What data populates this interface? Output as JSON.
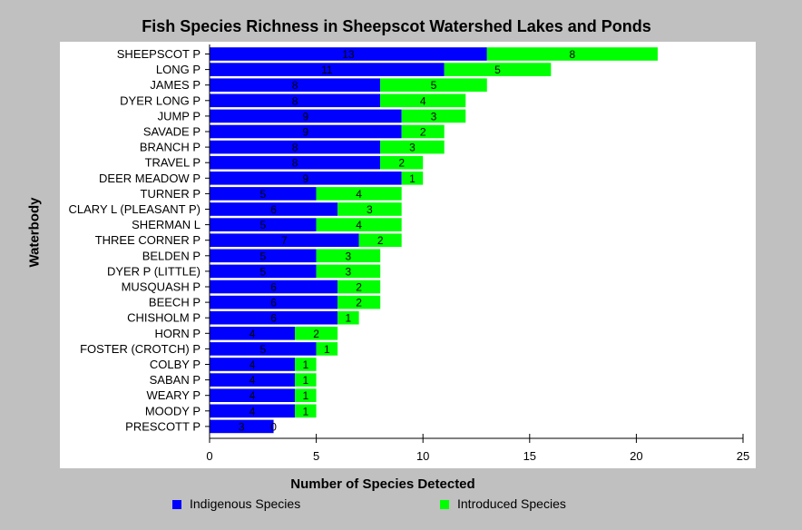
{
  "chart_data": {
    "type": "bar",
    "orientation": "horizontal",
    "stacked": true,
    "title": "Fish Species Richness in Sheepscot Watershed Lakes and Ponds",
    "xlabel": "Number of Species Detected",
    "ylabel": "Waterbody",
    "xlim": [
      0,
      25
    ],
    "x_ticks": [
      0,
      5,
      10,
      15,
      20,
      25
    ],
    "grid": false,
    "legend_position": "bottom",
    "categories": [
      "SHEEPSCOT P",
      "LONG P",
      "JAMES P",
      "DYER LONG P",
      "JUMP P",
      "SAVADE P",
      "BRANCH P",
      "TRAVEL P",
      "DEER MEADOW P",
      "TURNER P",
      "CLARY L (PLEASANT P)",
      "SHERMAN L",
      "THREE CORNER P",
      "BELDEN P",
      "DYER P (LITTLE)",
      "MUSQUASH P",
      "BEECH P",
      "CHISHOLM P",
      "HORN P",
      "FOSTER (CROTCH) P",
      "COLBY P",
      "SABAN P",
      "WEARY P",
      "MOODY P",
      "PRESCOTT P"
    ],
    "series": [
      {
        "name": "Indigenous Species",
        "color": "#0000ff",
        "values": [
          13,
          11,
          8,
          8,
          9,
          9,
          8,
          8,
          9,
          5,
          6,
          5,
          7,
          5,
          5,
          6,
          6,
          6,
          4,
          5,
          4,
          4,
          4,
          4,
          3
        ]
      },
      {
        "name": "Introduced Species",
        "color": "#00ff00",
        "values": [
          8,
          5,
          5,
          4,
          3,
          2,
          3,
          2,
          1,
          4,
          3,
          4,
          2,
          3,
          3,
          2,
          2,
          1,
          2,
          1,
          1,
          1,
          1,
          1,
          0
        ]
      }
    ]
  }
}
